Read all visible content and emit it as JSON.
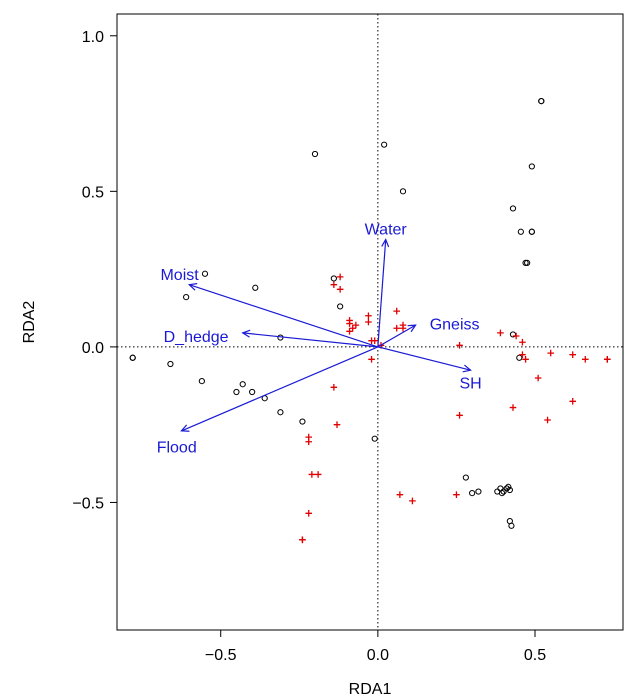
{
  "chart_data": {
    "type": "scatter",
    "title": "",
    "xlabel": "RDA1",
    "ylabel": "RDA2",
    "xlim": [
      -0.83,
      0.78
    ],
    "ylim": [
      -0.91,
      1.07
    ],
    "xticks": [
      -0.5,
      0.0,
      0.5
    ],
    "yticks": [
      -0.5,
      0.0,
      0.5,
      1.0
    ],
    "xtick_labels": [
      "−0.5",
      "0.0",
      "0.5"
    ],
    "ytick_labels": [
      "−0.5",
      "0.0",
      "0.5",
      "1.0"
    ],
    "grid": false,
    "reference_lines": {
      "x": 0,
      "y": 0,
      "style": "dotted"
    },
    "colors": {
      "circles": "#000000",
      "crosses": "#e00000",
      "vectors": "#1a1ad4"
    },
    "circles": [
      [
        -0.78,
        -0.035
      ],
      [
        -0.78,
        -0.035
      ],
      [
        -0.66,
        -0.055
      ],
      [
        -0.56,
        -0.11
      ],
      [
        -0.55,
        0.235
      ],
      [
        -0.61,
        0.16
      ],
      [
        -0.43,
        -0.12
      ],
      [
        -0.45,
        -0.145
      ],
      [
        -0.4,
        -0.145
      ],
      [
        -0.36,
        -0.165
      ],
      [
        -0.31,
        -0.21
      ],
      [
        -0.24,
        -0.24
      ],
      [
        -0.39,
        0.19
      ],
      [
        -0.31,
        0.03
      ],
      [
        -0.14,
        0.22
      ],
      [
        -0.12,
        0.13
      ],
      [
        -0.2,
        0.62
      ],
      [
        0.02,
        0.65
      ],
      [
        0.08,
        0.5
      ],
      [
        -0.01,
        -0.295
      ],
      [
        0.52,
        0.79
      ],
      [
        0.52,
        0.79
      ],
      [
        0.49,
        0.58
      ],
      [
        0.43,
        0.445
      ],
      [
        0.455,
        0.37
      ],
      [
        0.49,
        0.37
      ],
      [
        0.49,
        0.37
      ],
      [
        0.47,
        0.27
      ],
      [
        0.475,
        0.27
      ],
      [
        0.43,
        0.04
      ],
      [
        0.45,
        -0.035
      ],
      [
        0.28,
        -0.42
      ],
      [
        0.3,
        -0.47
      ],
      [
        0.32,
        -0.465
      ],
      [
        0.38,
        -0.465
      ],
      [
        0.39,
        -0.455
      ],
      [
        0.395,
        -0.47
      ],
      [
        0.4,
        -0.465
      ],
      [
        0.41,
        -0.455
      ],
      [
        0.415,
        -0.45
      ],
      [
        0.42,
        -0.46
      ],
      [
        0.42,
        -0.56
      ],
      [
        0.425,
        -0.575
      ]
    ],
    "crosses": [
      [
        -0.12,
        0.225
      ],
      [
        -0.14,
        0.2
      ],
      [
        -0.12,
        0.185
      ],
      [
        -0.09,
        0.085
      ],
      [
        -0.09,
        0.075
      ],
      [
        -0.08,
        0.06
      ],
      [
        -0.07,
        0.07
      ],
      [
        -0.09,
        0.05
      ],
      [
        -0.03,
        0.1
      ],
      [
        -0.03,
        0.08
      ],
      [
        -0.02,
        0.02
      ],
      [
        -0.01,
        0.02
      ],
      [
        -0.02,
        -0.04
      ],
      [
        0.01,
        0.005
      ],
      [
        0.06,
        0.115
      ],
      [
        0.06,
        0.06
      ],
      [
        0.08,
        0.07
      ],
      [
        0.08,
        0.06
      ],
      [
        -0.14,
        -0.13
      ],
      [
        -0.13,
        -0.25
      ],
      [
        -0.22,
        -0.29
      ],
      [
        -0.22,
        -0.305
      ],
      [
        -0.21,
        -0.41
      ],
      [
        -0.19,
        -0.41
      ],
      [
        -0.22,
        -0.535
      ],
      [
        -0.24,
        -0.62
      ],
      [
        -0.24,
        -0.62
      ],
      [
        0.07,
        -0.475
      ],
      [
        0.11,
        -0.495
      ],
      [
        0.26,
        0.005
      ],
      [
        0.26,
        -0.22
      ],
      [
        0.25,
        -0.475
      ],
      [
        0.39,
        0.045
      ],
      [
        0.44,
        0.035
      ],
      [
        0.46,
        0.015
      ],
      [
        0.46,
        -0.025
      ],
      [
        0.47,
        -0.04
      ],
      [
        0.43,
        -0.195
      ],
      [
        0.51,
        -0.1
      ],
      [
        0.55,
        -0.02
      ],
      [
        0.62,
        -0.025
      ],
      [
        0.66,
        -0.04
      ],
      [
        0.62,
        -0.175
      ],
      [
        0.54,
        -0.235
      ],
      [
        0.73,
        -0.04
      ],
      [
        0.73,
        -0.04
      ]
    ],
    "vectors": [
      {
        "label": "Water",
        "x": 0.025,
        "y": 0.345
      },
      {
        "label": "Moist",
        "x": -0.6,
        "y": 0.2
      },
      {
        "label": "D_hedge",
        "x": -0.43,
        "y": 0.045
      },
      {
        "label": "Gneiss",
        "x": 0.12,
        "y": 0.07
      },
      {
        "label": "SH",
        "x": 0.295,
        "y": -0.075
      },
      {
        "label": "Flood",
        "x": -0.625,
        "y": -0.27
      }
    ]
  }
}
